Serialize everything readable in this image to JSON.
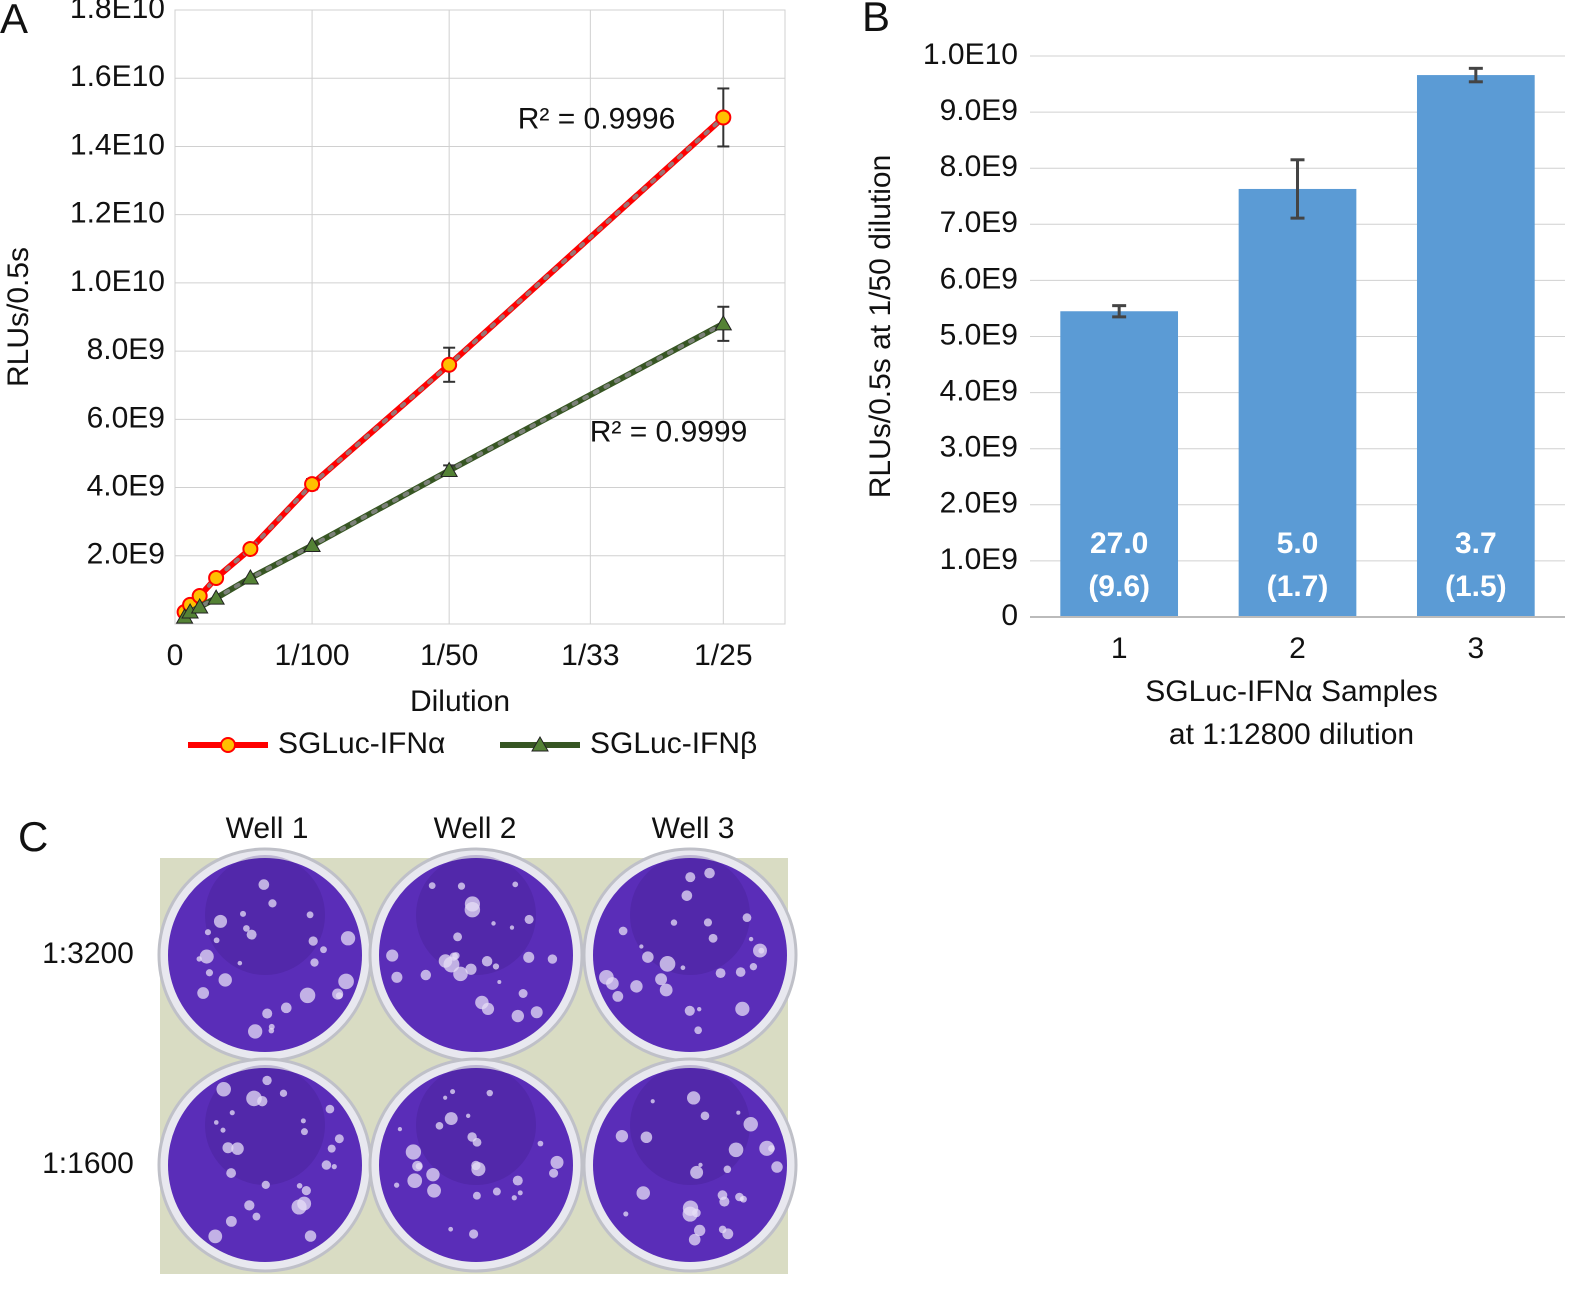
{
  "chart_data": [
    {
      "type": "line",
      "panel_label": "A",
      "ylabel": "RLUs/0.5s",
      "xlabel": "Dilution",
      "x": [
        0.0007,
        0.0011,
        0.0018,
        0.003,
        0.0055,
        0.01,
        0.02,
        0.04
      ],
      "xlim": [
        0,
        0.0445
      ],
      "xticks": [
        0,
        {
          "value": 0.01,
          "label": "1/100"
        },
        {
          "value": 0.02,
          "label": "1/50"
        },
        {
          "value": 0.0303,
          "label": "1/33"
        },
        {
          "value": 0.04,
          "label": "1/25"
        }
      ],
      "ylim": [
        0,
        18000000000
      ],
      "yticks": [
        {
          "value": 2000000000,
          "label": "2.0E9"
        },
        {
          "value": 4000000000,
          "label": "4.0E9"
        },
        {
          "value": 6000000000,
          "label": "6.0E9"
        },
        {
          "value": 8000000000,
          "label": "8.0E9"
        },
        {
          "value": 10000000000,
          "label": "1.0E10"
        },
        {
          "value": 12000000000,
          "label": "1.2E10"
        },
        {
          "value": 14000000000,
          "label": "1.4E10"
        },
        {
          "value": 16000000000,
          "label": "1.6E10"
        },
        {
          "value": 18000000000,
          "label": "1.8E10"
        }
      ],
      "grid": true,
      "legend": "bottom",
      "series": [
        {
          "name": "SGLuc-IFNα",
          "color": "#ff0000",
          "marker": "circle",
          "marker_color": "#ffc000",
          "trendline_label": "R² = 0.9996",
          "values": [
            350000000,
            560000000,
            820000000,
            1350000000,
            2200000000,
            4100000000,
            7600000000,
            14850000000
          ],
          "errors": [
            null,
            null,
            null,
            null,
            null,
            150000000,
            500000000,
            850000000
          ]
        },
        {
          "name": "SGLuc-IFNβ",
          "color": "#375623",
          "marker": "triangle",
          "marker_color": "#548235",
          "trendline_label": "R² = 0.9999",
          "values": [
            200000000,
            350000000,
            500000000,
            760000000,
            1350000000,
            2300000000,
            4500000000,
            8800000000
          ],
          "errors": [
            null,
            null,
            null,
            null,
            null,
            null,
            150000000,
            500000000
          ]
        }
      ]
    },
    {
      "type": "bar",
      "panel_label": "B",
      "ylabel": "RLUs/0.5s at 1/50 dilution",
      "xlabel": [
        "SGLuc-IFNα Samples",
        "at 1:12800 dilution"
      ],
      "categories": [
        "1",
        "2",
        "3"
      ],
      "values": [
        5450000000,
        7630000000,
        9660000000
      ],
      "errors": [
        100000000,
        520000000,
        120000000
      ],
      "bar_labels": [
        [
          "27.0",
          "(9.6)"
        ],
        [
          "5.0",
          "(1.7)"
        ],
        [
          "3.7",
          "(1.5)"
        ]
      ],
      "color": "#5b9bd5",
      "ylim": [
        0,
        10000000000
      ],
      "yticks": [
        0,
        {
          "value": 1000000000,
          "label": "1.0E9"
        },
        {
          "value": 2000000000,
          "label": "2.0E9"
        },
        {
          "value": 3000000000,
          "label": "3.0E9"
        },
        {
          "value": 4000000000,
          "label": "4.0E9"
        },
        {
          "value": 5000000000,
          "label": "5.0E9"
        },
        {
          "value": 6000000000,
          "label": "6.0E9"
        },
        {
          "value": 7000000000,
          "label": "7.0E9"
        },
        {
          "value": 8000000000,
          "label": "8.0E9"
        },
        {
          "value": 9000000000,
          "label": "9.0E9"
        },
        {
          "value": 10000000000,
          "label": "1.0E10"
        }
      ],
      "grid": true
    }
  ],
  "plate": {
    "label": "C",
    "columns": [
      "Well 1",
      "Well 2",
      "Well 3"
    ],
    "rows": [
      "1:3200",
      "1:1600"
    ]
  }
}
